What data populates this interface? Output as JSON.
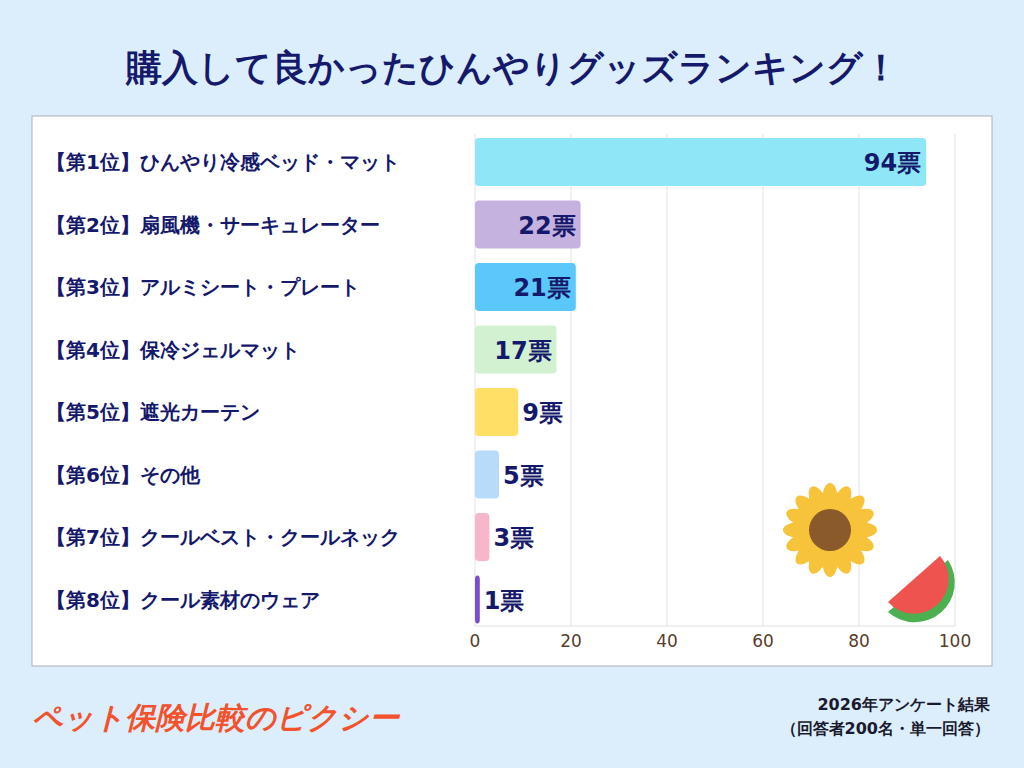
{
  "chart_data": {
    "type": "bar",
    "orientation": "horizontal",
    "title": "購入して良かったひんやりグッズランキング！",
    "categories": [
      "【第1位】ひんやり冷感ベッド・マット",
      "【第2位】扇風機・サーキュレーター",
      "【第3位】アルミシート・プレート",
      "【第4位】保冷ジェルマット",
      "【第5位】遮光カーテン",
      "【第6位】その他",
      "【第7位】クールベスト・クールネック",
      "【第8位】クール素材のウェア"
    ],
    "values": [
      94,
      22,
      21,
      17,
      9,
      5,
      3,
      1
    ],
    "value_labels": [
      "94票",
      "22票",
      "21票",
      "17票",
      "9票",
      "5票",
      "3票",
      "1票"
    ],
    "colors": [
      "#8ee6f7",
      "#c6b2df",
      "#5ac8fa",
      "#d2f1d0",
      "#ffdf66",
      "#b8dbfa",
      "#f8b6cb",
      "#7b4fc9"
    ],
    "xlim": [
      0,
      100
    ],
    "xticks": [
      0,
      20,
      40,
      60,
      80,
      100
    ],
    "grid": true,
    "data_labels": true
  },
  "footer": {
    "brand": "ペット保険比較のピクシー",
    "notes": [
      "2026年アンケート結果",
      "（回答者200名・単一回答）"
    ]
  }
}
